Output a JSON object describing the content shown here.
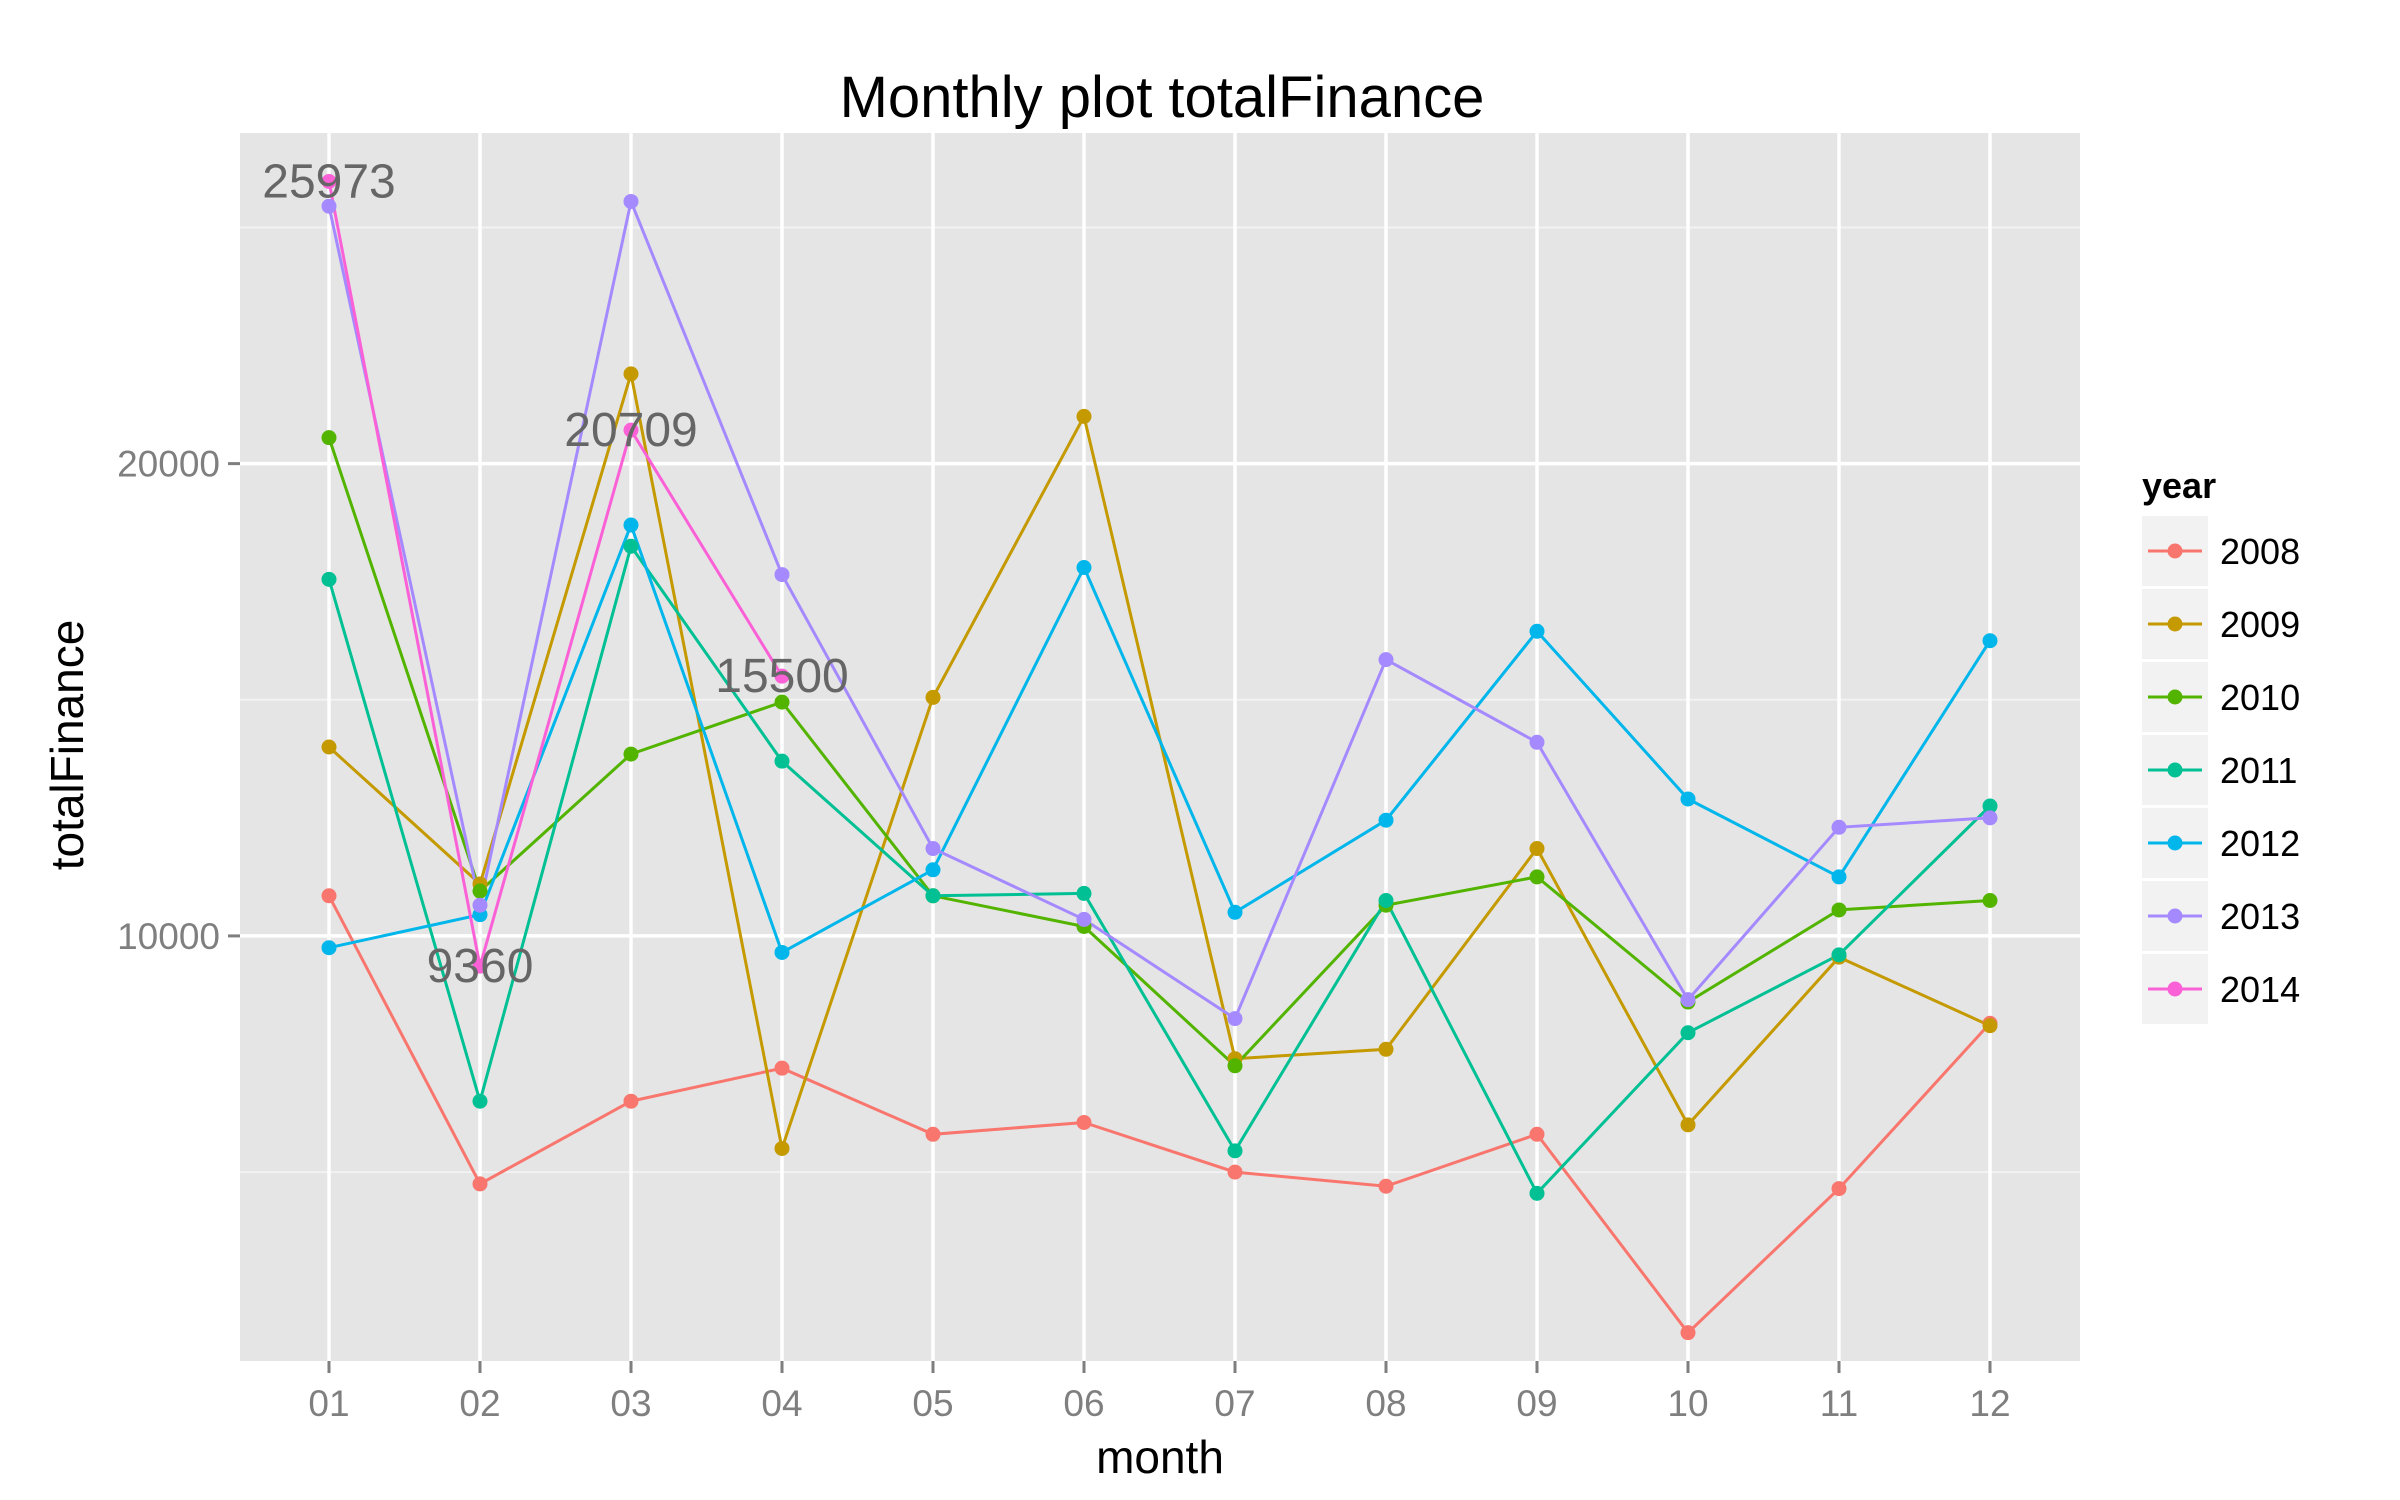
{
  "chart_data": {
    "type": "line",
    "title": "Monthly plot totalFinance",
    "xlabel": "month",
    "ylabel": "totalFinance",
    "categories": [
      "01",
      "02",
      "03",
      "04",
      "05",
      "06",
      "07",
      "08",
      "09",
      "10",
      "11",
      "12"
    ],
    "ylim": [
      1000,
      27000
    ],
    "yticks": [
      10000,
      20000
    ],
    "grid": true,
    "legend": {
      "title": "year",
      "placement": "right"
    },
    "series": [
      {
        "name": "2008",
        "color": "#F8766D",
        "values": [
          10850,
          4750,
          6500,
          7200,
          5800,
          6050,
          5000,
          4700,
          5800,
          1600,
          4650,
          8150
        ]
      },
      {
        "name": "2009",
        "color": "#C49A00",
        "values": [
          14000,
          11100,
          21900,
          5500,
          15050,
          21000,
          7400,
          7600,
          11850,
          6000,
          9550,
          8100
        ]
      },
      {
        "name": "2010",
        "color": "#53B400",
        "values": [
          20550,
          10950,
          13850,
          14950,
          10850,
          10200,
          7250,
          10650,
          11250,
          8600,
          10550,
          10750
        ]
      },
      {
        "name": "2011",
        "color": "#00C094",
        "values": [
          17550,
          6500,
          18250,
          13700,
          10850,
          10900,
          5450,
          10750,
          4550,
          7950,
          9600,
          12750
        ]
      },
      {
        "name": "2012",
        "color": "#00B6EB",
        "values": [
          9750,
          10450,
          18700,
          9650,
          11400,
          17800,
          10500,
          12450,
          16450,
          12900,
          11250,
          16250
        ]
      },
      {
        "name": "2013",
        "color": "#A58AFF",
        "values": [
          25450,
          10650,
          25550,
          17650,
          11850,
          10350,
          8250,
          15850,
          14100,
          8650,
          12300,
          12500
        ]
      },
      {
        "name": "2014",
        "color": "#FB61D7",
        "values": [
          25973,
          9360,
          20709,
          15500,
          null,
          null,
          null,
          null,
          null,
          null,
          null,
          null
        ]
      }
    ],
    "annotations": [
      {
        "text": "25973",
        "category": "01",
        "value": 25973
      },
      {
        "text": "9360",
        "category": "02",
        "value": 9360
      },
      {
        "text": "20709",
        "category": "03",
        "value": 20709
      },
      {
        "text": "15500",
        "category": "04",
        "value": 15500
      }
    ]
  }
}
